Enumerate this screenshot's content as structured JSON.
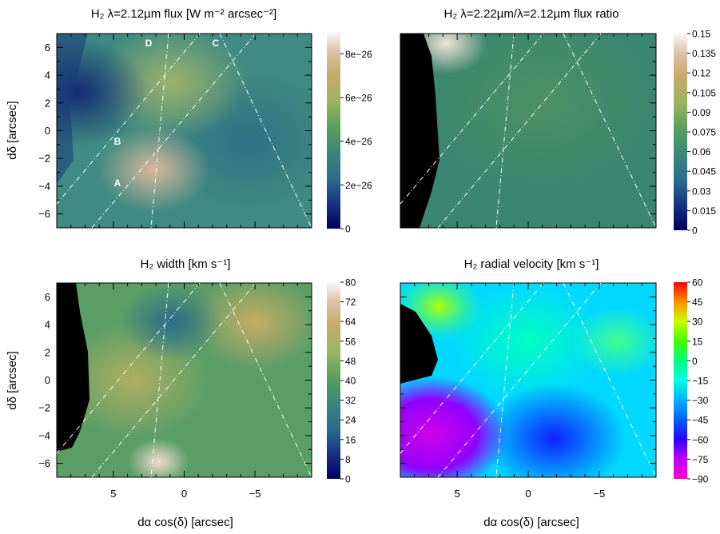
{
  "chart_data": [
    {
      "type": "heatmap",
      "title": "H₂ λ=2.12µm flux [W m⁻² arcsec⁻²]",
      "ylabel": "dδ [arcsec]",
      "xlabel": "",
      "xlim": [
        9,
        -9
      ],
      "ylim": [
        -7,
        7
      ],
      "xticks": [
        "5",
        "0",
        "−5"
      ],
      "yticks": [
        "6",
        "4",
        "2",
        "0",
        "−2",
        "−4",
        "−6"
      ],
      "colorbar": {
        "ticks": [
          "0",
          "2e−26",
          "4e−26",
          "6e−26",
          "8e−26"
        ],
        "vmin": 0,
        "vmax": 9e-26,
        "colormap": "gist_earth-like"
      },
      "annotations": [
        {
          "text": "D",
          "x": 2.4,
          "y": 6.2
        },
        {
          "text": "C",
          "x": -2.0,
          "y": 6.2
        },
        {
          "text": "B",
          "x": 4.8,
          "y": -0.7
        },
        {
          "text": "A",
          "x": 4.8,
          "y": -3.8
        }
      ]
    },
    {
      "type": "heatmap",
      "title": "H₂ λ=2.22µm/λ=2.12µm flux ratio",
      "xlim": [
        9,
        -9
      ],
      "ylim": [
        -7,
        7
      ],
      "colorbar": {
        "ticks": [
          "0",
          "0.015",
          "0.03",
          "0.045",
          "0.06",
          "0.075",
          "0.09",
          "0.105",
          "0.12",
          "0.135",
          "0.15"
        ],
        "vmin": 0,
        "vmax": 0.15,
        "colormap": "gist_earth-like"
      }
    },
    {
      "type": "heatmap",
      "title": "H₂ width [km s⁻¹]",
      "ylabel": "dδ [arcsec]",
      "xlabel": "dα cos(δ) [arcsec]",
      "xlim": [
        9,
        -9
      ],
      "ylim": [
        -7,
        7
      ],
      "xticks": [
        "5",
        "0",
        "−5"
      ],
      "yticks": [
        "6",
        "4",
        "2",
        "0",
        "−2",
        "−4",
        "−6"
      ],
      "colorbar": {
        "ticks": [
          "0",
          "8",
          "16",
          "24",
          "32",
          "40",
          "48",
          "56",
          "64",
          "72",
          "80"
        ],
        "vmin": 0,
        "vmax": 80,
        "colormap": "gist_earth-like"
      }
    },
    {
      "type": "heatmap",
      "title": "H₂ radial velocity [km s⁻¹]",
      "xlabel": "dα cos(δ) [arcsec]",
      "xlim": [
        9,
        -9
      ],
      "ylim": [
        -7,
        7
      ],
      "xticks": [
        "5",
        "0",
        "−5"
      ],
      "colorbar": {
        "ticks": [
          "−90",
          "−75",
          "−60",
          "−45",
          "−30",
          "−15",
          "0",
          "15",
          "30",
          "45",
          "60"
        ],
        "vmin": -90,
        "vmax": 60,
        "colormap": "gist_rainbow_r-like"
      }
    }
  ],
  "colors": {
    "background": "#ffffff",
    "frame": "#000000",
    "slit_lines": "#ffffff",
    "masked": "#000000"
  }
}
